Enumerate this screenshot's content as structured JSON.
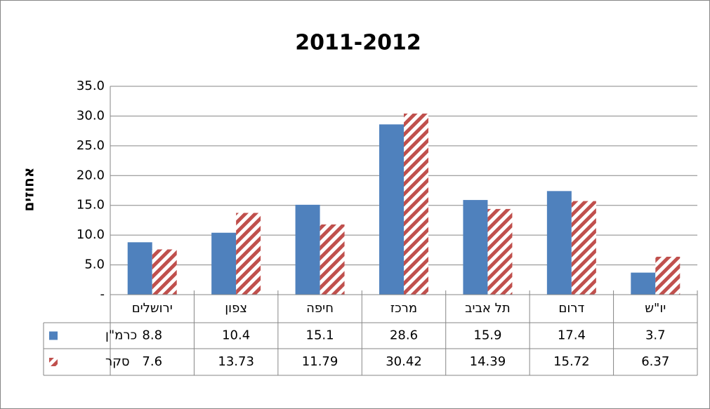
{
  "chart_data": {
    "type": "bar",
    "title": "2011-2012",
    "y_label": "אחוזים",
    "categories": [
      "ירושלים",
      "צפון",
      "חיפה",
      "מרכז",
      "תל אביב",
      "דרום",
      "יו\"ש"
    ],
    "series": [
      {
        "name": "כרמ\"ן",
        "color": "#4f81bd",
        "pattern": "solid",
        "values": [
          8.8,
          10.4,
          15.1,
          28.6,
          15.9,
          17.4,
          3.7
        ]
      },
      {
        "name": "סקר",
        "color": "#c0504d",
        "pattern": "hatch",
        "values": [
          7.6,
          13.73,
          11.79,
          30.42,
          14.39,
          15.72,
          6.37
        ]
      }
    ],
    "ylim": [
      0,
      35
    ],
    "yticks": [
      {
        "value": 0,
        "label": "-"
      },
      {
        "value": 5,
        "label": "5.0"
      },
      {
        "value": 10,
        "label": "10.0"
      },
      {
        "value": 15,
        "label": "15.0"
      },
      {
        "value": 20,
        "label": "20.0"
      },
      {
        "value": 25,
        "label": "25.0"
      },
      {
        "value": 30,
        "label": "30.0"
      },
      {
        "value": 35,
        "label": "35.0"
      }
    ],
    "grid": true,
    "data_table": true
  }
}
